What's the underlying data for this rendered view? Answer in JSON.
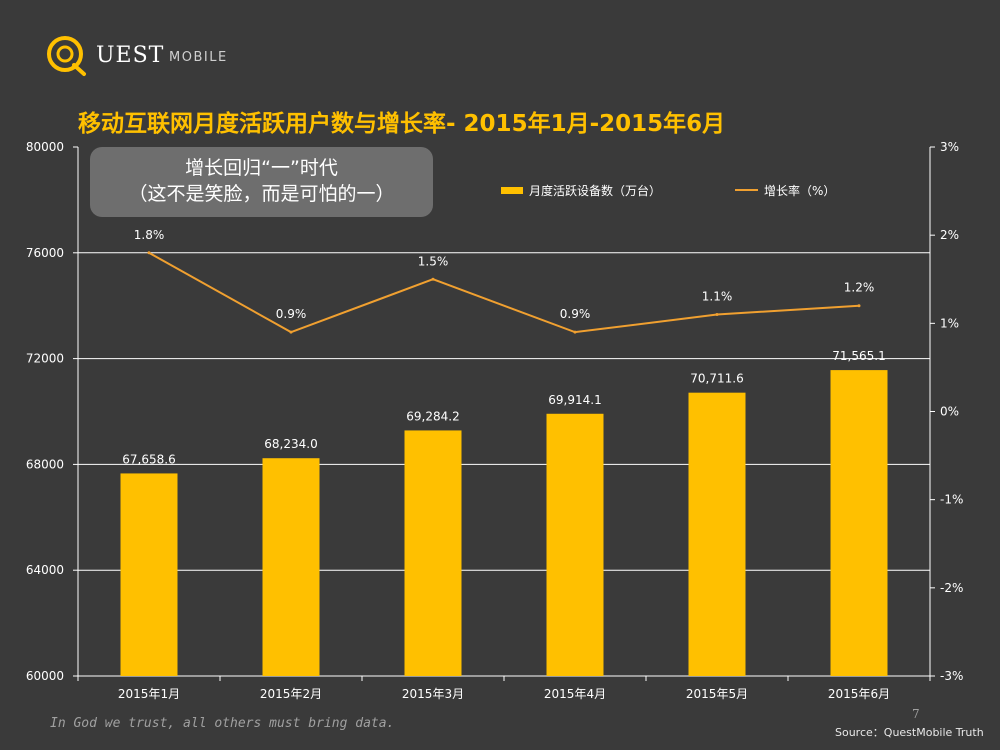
{
  "logo": {
    "word": "UEST",
    "sub": "MOBILE",
    "icon": "q-logo-icon",
    "accent": "#ffc000"
  },
  "title": "移动互联网月度活跃用户数与增长率- 2015年1月-2015年6月",
  "callout": {
    "line1": "增长回归“一”时代",
    "line2": "（这不是笑脸，而是可怕的一）"
  },
  "footer": {
    "quote": "In God we trust, all others must bring data.",
    "page": "7",
    "source": "Source：QuestMobile Truth"
  },
  "colors": {
    "bar": "#ffc000",
    "line": "#f0a030",
    "text": "#ffffff",
    "background": "#3a3a3a"
  },
  "chart_data": {
    "type": "bar",
    "categories": [
      "2015年1月",
      "2015年2月",
      "2015年3月",
      "2015年4月",
      "2015年5月",
      "2015年6月"
    ],
    "series": [
      {
        "name": "月度活跃设备数（万台）",
        "type": "bar",
        "axis": "left",
        "values": [
          67658.6,
          68234.0,
          69284.2,
          69914.1,
          70711.6,
          71565.1
        ],
        "labels": [
          "67,658.6",
          "68,234.0",
          "69,284.2",
          "69,914.1",
          "70,711.6",
          "71,565.1"
        ]
      },
      {
        "name": "增长率（%）",
        "type": "line",
        "axis": "right",
        "values": [
          1.8,
          0.9,
          1.5,
          0.9,
          1.1,
          1.2
        ],
        "labels": [
          "1.8%",
          "0.9%",
          "1.5%",
          "0.9%",
          "1.1%",
          "1.2%"
        ]
      }
    ],
    "ylim": [
      60000,
      80000
    ],
    "yticks": [
      60000,
      64000,
      68000,
      72000,
      76000,
      80000
    ],
    "y2lim": [
      -3,
      3
    ],
    "y2ticks": [
      "-3%",
      "-2%",
      "-1%",
      "0%",
      "1%",
      "2%",
      "3%"
    ],
    "legend": "top-right"
  }
}
